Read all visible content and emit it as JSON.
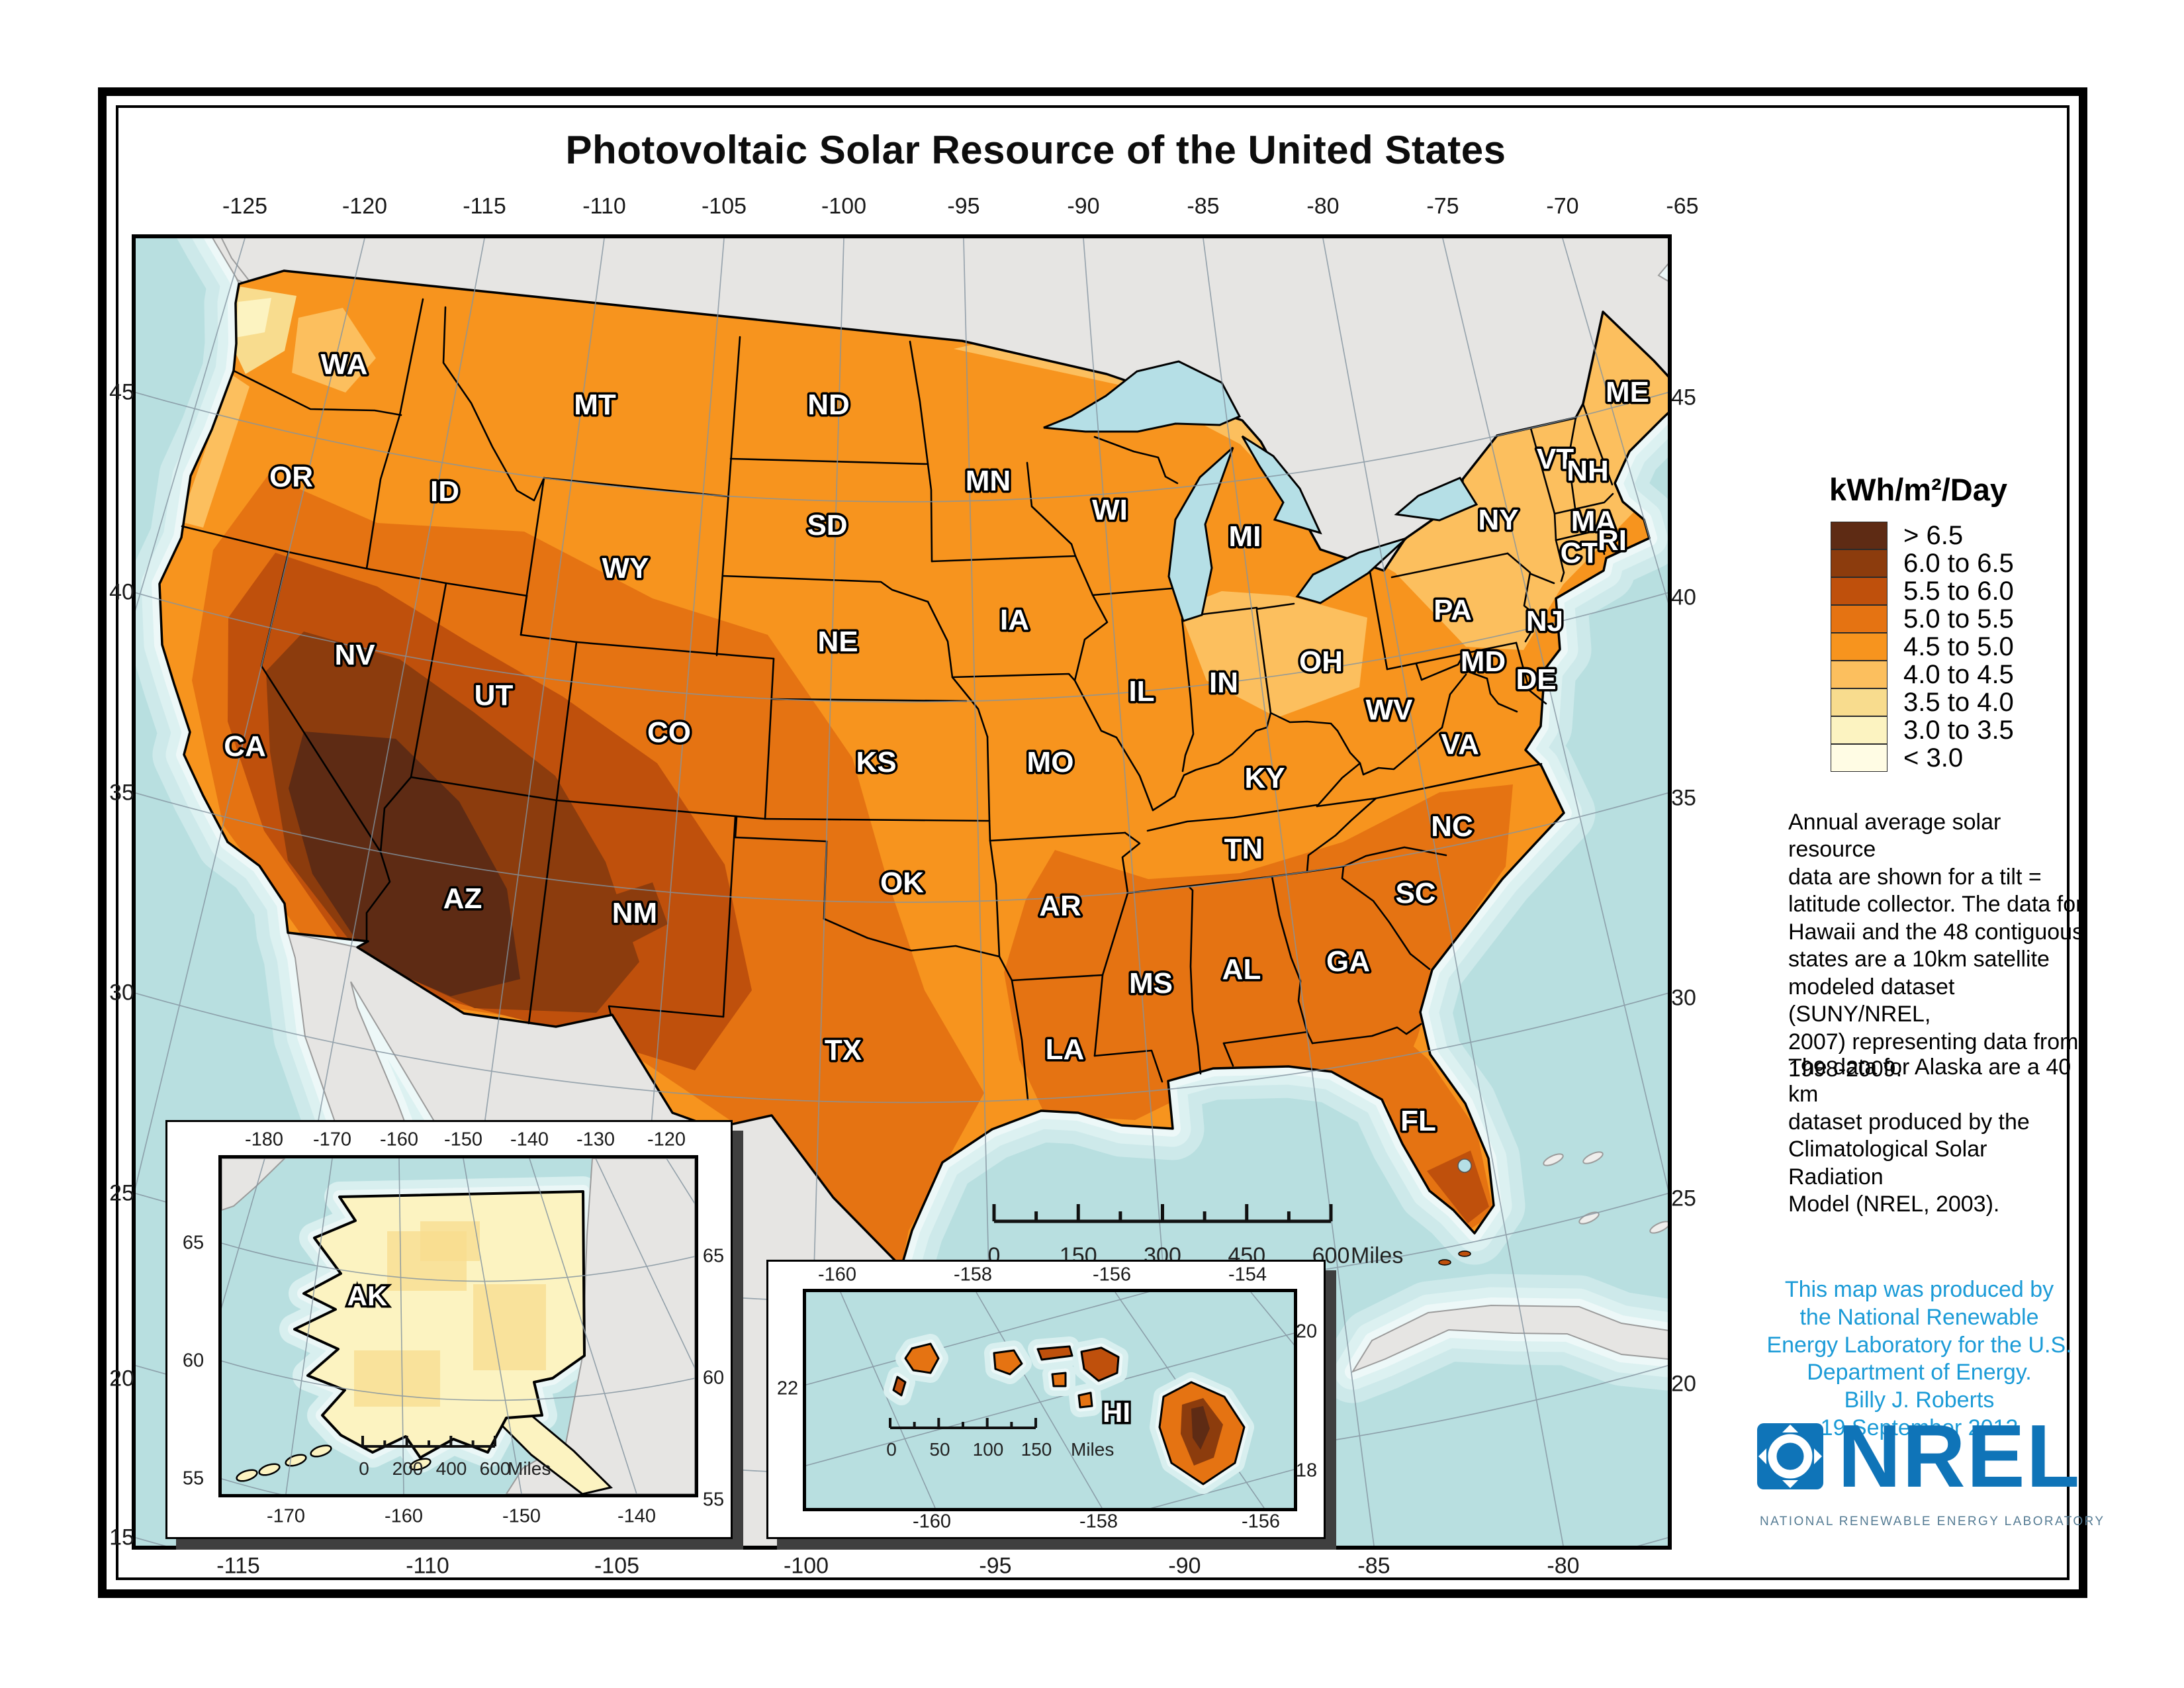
{
  "title": "Photovoltaic Solar Resource of the United States",
  "legend": {
    "title": "kWh/m²/Day",
    "items": [
      {
        "label": "> 6.5",
        "color": "#5e2b14"
      },
      {
        "label": "6.0 to 6.5",
        "color": "#8c3c0d"
      },
      {
        "label": "5.5 to 6.0",
        "color": "#bf500c"
      },
      {
        "label": "5.0 to 5.5",
        "color": "#e57312"
      },
      {
        "label": "4.5 to 5.0",
        "color": "#f7941e"
      },
      {
        "label": "4.0 to 4.5",
        "color": "#fcbf5e"
      },
      {
        "label": "3.5 to 4.0",
        "color": "#f8dc8e"
      },
      {
        "label": "3.0 to 3.5",
        "color": "#fcf3c1"
      },
      {
        "label": "< 3.0",
        "color": "#fffce4"
      }
    ]
  },
  "notes": {
    "paragraph1": "Annual average solar resource\ndata are shown for a tilt =\nlatitude collector.  The data for\nHawaii and the 48 contiguous\nstates are a 10km satellite\nmodeled dataset (SUNY/NREL,\n2007) representing data from\n1998-2009.",
    "paragraph2": "The data for Alaska are a 40 km\ndataset produced by the\nClimatological Solar Radiation\nModel (NREL, 2003)."
  },
  "credit": {
    "text": "This map was produced by\nthe National Renewable\nEnergy Laboratory for the U.S.\nDepartment of Energy.\nBilly J. Roberts\n19 September 2012"
  },
  "logo": {
    "acronym": "NREL",
    "caption": "NATIONAL RENEWABLE ENERGY LABORATORY"
  },
  "colors": {
    "ocean": "#b8dfe0",
    "land_gray": "#e6e5e3",
    "credit_blue": "#1b9bd7",
    "logo_blue": "#0f74b8"
  },
  "main_map": {
    "axis": {
      "top": [
        "-125",
        "-120",
        "-115",
        "-110",
        "-105",
        "-100",
        "-95",
        "-90",
        "-85",
        "-80",
        "-75",
        "-70",
        "-65"
      ],
      "bottom": [
        "-115",
        "-110",
        "-105",
        "-100",
        "-95",
        "-90",
        "-85",
        "-80"
      ],
      "left": [
        "45",
        "40",
        "35",
        "30",
        "25",
        "20",
        "15"
      ],
      "right": [
        "45",
        "40",
        "35",
        "30",
        "25",
        "20"
      ]
    },
    "scalebar": {
      "labels": [
        "0",
        "150",
        "300",
        "450",
        "600"
      ],
      "unit": "Miles"
    },
    "states": [
      "WA",
      "OR",
      "CA",
      "NV",
      "ID",
      "MT",
      "WY",
      "UT",
      "CO",
      "AZ",
      "NM",
      "ND",
      "SD",
      "NE",
      "KS",
      "OK",
      "TX",
      "MN",
      "IA",
      "MO",
      "AR",
      "LA",
      "WI",
      "IL",
      "MS",
      "MI",
      "IN",
      "OH",
      "KY",
      "TN",
      "AL",
      "GA",
      "WV",
      "VA",
      "NC",
      "SC",
      "FL",
      "PA",
      "NY",
      "NJ",
      "MD",
      "DE",
      "ME",
      "VT",
      "NH",
      "MA",
      "CT",
      "RI"
    ]
  },
  "alaska_inset": {
    "label": "AK",
    "axis": {
      "top": [
        "-180",
        "-170",
        "-160",
        "-150",
        "-140",
        "-130",
        "-120"
      ],
      "left": [
        "65",
        "60",
        "55"
      ],
      "right": [
        "65",
        "60",
        "55"
      ],
      "bottom": [
        "-170",
        "-160",
        "-150",
        "-140"
      ]
    },
    "scalebar": {
      "labels": [
        "0",
        "200",
        "400",
        "600"
      ],
      "unit": "Miles"
    }
  },
  "hawaii_inset": {
    "label": "HI",
    "axis": {
      "top": [
        "-160",
        "-158",
        "-156",
        "-154"
      ],
      "left": [
        "22"
      ],
      "right": [
        "20",
        "18"
      ],
      "bottom": [
        "-160",
        "-158",
        "-156"
      ]
    },
    "scalebar": {
      "labels": [
        "0",
        "50",
        "100",
        "150"
      ],
      "unit": "Miles"
    }
  }
}
